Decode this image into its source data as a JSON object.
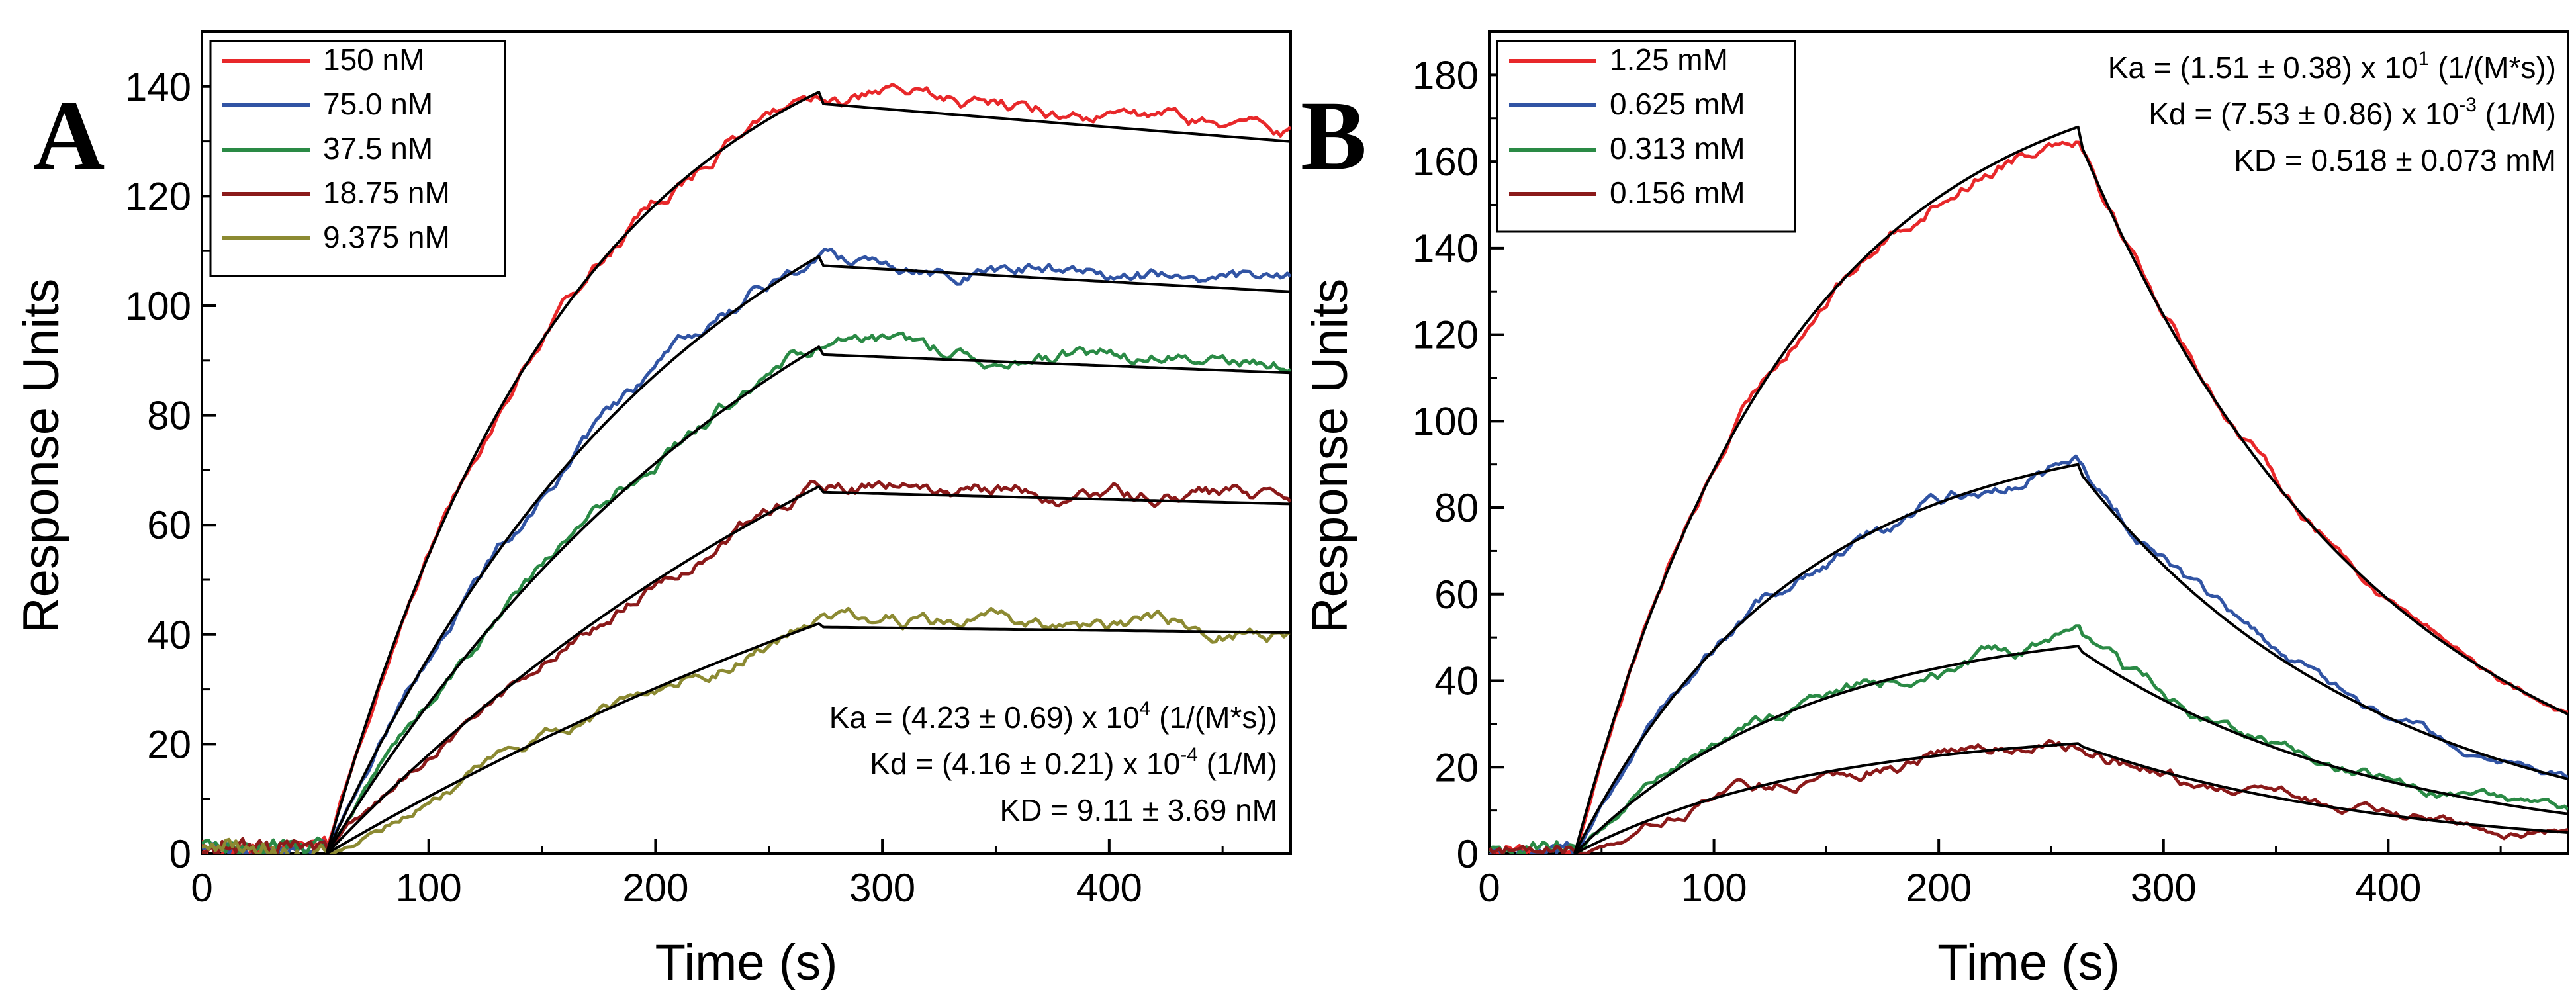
{
  "chart_data": [
    {
      "type": "line",
      "panel_label": "A",
      "xlabel": "Time (s)",
      "ylabel": "Response Units",
      "xlim": [
        0,
        480
      ],
      "ylim": [
        0,
        150
      ],
      "xticks": [
        0,
        100,
        200,
        300,
        400
      ],
      "yticks": [
        0,
        20,
        40,
        60,
        80,
        100,
        120,
        140
      ],
      "legend_position": "top-left",
      "association_start": 55,
      "association_end": 272,
      "series": [
        {
          "name": "150 nM",
          "color": "#e8282a",
          "rmax": 139,
          "kobs": 0.0092,
          "kd": 0.00025,
          "noise": 1.6
        },
        {
          "name": "75.0 nM",
          "color": "#3154a4",
          "rmax": 109,
          "kobs": 0.0062,
          "kd": 0.00022,
          "noise": 1.6
        },
        {
          "name": "37.5 nM",
          "color": "#2a8a45",
          "rmax": 92.5,
          "kobs": 0.0046,
          "kd": 0.00018,
          "noise": 1.6
        },
        {
          "name": "18.75 nM",
          "color": "#8b1a1a",
          "rmax": 67,
          "kobs": 0.0033,
          "kd": 0.00016,
          "noise": 1.6
        },
        {
          "name": "9.375 nM",
          "color": "#8c8a32",
          "rmax": 42,
          "kobs": 0.0022,
          "kd": 0.00012,
          "noise": 1.6
        }
      ],
      "annotation": [
        {
          "main": "Ka = (4.23 ± 0.69) x 10",
          "sup": "4",
          "rest": " (1/(M*s))"
        },
        {
          "main": "Kd = (4.16 ± 0.21) x 10",
          "sup": "-4",
          "rest": " (1/M)"
        },
        {
          "main": "KD = 9.11 ± 3.69 nM",
          "sup": "",
          "rest": ""
        }
      ]
    },
    {
      "type": "line",
      "panel_label": "B",
      "xlabel": "Time (s)",
      "ylabel": "Response Units",
      "xlim": [
        0,
        480
      ],
      "ylim": [
        0,
        190
      ],
      "xticks": [
        0,
        100,
        200,
        300,
        400
      ],
      "yticks": [
        0,
        20,
        40,
        60,
        80,
        100,
        120,
        140,
        160,
        180
      ],
      "legend_position": "top-left",
      "association_start": 38,
      "association_end": 262,
      "series": [
        {
          "name": "1.25 mM",
          "color": "#e8282a",
          "rmax": 168,
          "kobs": 0.0105,
          "kd": 0.0075,
          "noise": 2.0
        },
        {
          "name": "0.625 mM",
          "color": "#3154a4",
          "rmax": 90,
          "kobs": 0.0103,
          "kd": 0.0075,
          "noise": 2.0
        },
        {
          "name": "0.313 mM",
          "color": "#2a8a45",
          "rmax": 48,
          "kobs": 0.0098,
          "kd": 0.0075,
          "noise": 2.0
        },
        {
          "name": "0.156 mM",
          "color": "#8b1a1a",
          "rmax": 25.5,
          "kobs": 0.0094,
          "kd": 0.0075,
          "noise": 2.0
        }
      ],
      "annotation": [
        {
          "main": "Ka = (1.51 ± 0.38) x 10",
          "sup": "1",
          "rest": " (1/(M*s))"
        },
        {
          "main": "Kd = (7.53 ± 0.86) x 10",
          "sup": "-3",
          "rest": " (1/M)"
        },
        {
          "main": "KD = 0.518 ± 0.073 mM",
          "sup": "",
          "rest": ""
        }
      ]
    }
  ]
}
